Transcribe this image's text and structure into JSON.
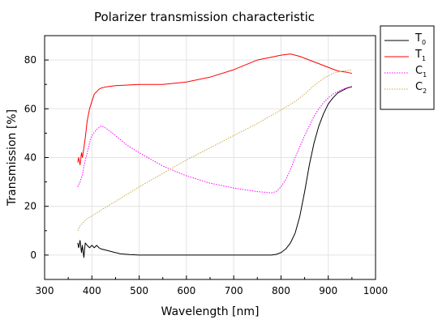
{
  "chart_data": {
    "type": "line",
    "title": "Polarizer transmission characteristic",
    "xlabel": "Wavelength [nm]",
    "ylabel": "Transmission [%]",
    "xlim": [
      300,
      1000
    ],
    "ylim": [
      -10,
      90
    ],
    "xticks": [
      300,
      400,
      500,
      600,
      700,
      800,
      900,
      1000
    ],
    "yticks": [
      0,
      20,
      40,
      60,
      80
    ],
    "grid": true,
    "legend_position": "right",
    "series": [
      {
        "name": "T",
        "subscript": "0",
        "color": "#000000",
        "dash": "solid",
        "x": [
          370,
          372,
          375,
          378,
          380,
          383,
          386,
          390,
          395,
          400,
          405,
          410,
          415,
          420,
          430,
          440,
          450,
          460,
          480,
          500,
          550,
          600,
          650,
          700,
          750,
          780,
          790,
          800,
          810,
          820,
          830,
          840,
          850,
          860,
          870,
          880,
          890,
          900,
          910,
          920,
          930,
          940,
          950
        ],
        "y": [
          5,
          3,
          6,
          1,
          4,
          -1,
          5,
          4,
          3,
          4,
          3,
          4,
          3,
          2.5,
          2,
          1.5,
          1,
          0.5,
          0.2,
          0,
          0,
          0,
          0,
          0,
          0,
          0,
          0.3,
          1,
          2.5,
          5,
          9,
          16,
          26,
          37,
          46,
          53,
          58,
          62,
          64.5,
          66.5,
          67.5,
          68.5,
          69
        ]
      },
      {
        "name": "T",
        "subscript": "1",
        "color": "#ff0000",
        "dash": "solid",
        "x": [
          370,
          372,
          375,
          378,
          380,
          383,
          386,
          390,
          395,
          400,
          405,
          410,
          415,
          420,
          430,
          450,
          500,
          550,
          600,
          650,
          700,
          750,
          800,
          820,
          840,
          860,
          880,
          900,
          920,
          940,
          950
        ],
        "y": [
          38,
          40,
          37,
          42,
          40,
          44,
          48,
          55,
          60,
          63,
          66,
          67,
          68,
          68.5,
          69,
          69.5,
          70,
          70,
          71,
          73,
          76,
          80,
          82,
          82.5,
          81.5,
          80,
          78.5,
          77,
          75.5,
          75,
          74.5
        ]
      },
      {
        "name": "C",
        "subscript": "1",
        "color": "#ff00ff",
        "dash": "dotted",
        "x": [
          370,
          375,
          380,
          385,
          390,
          395,
          400,
          410,
          420,
          430,
          440,
          450,
          475,
          500,
          550,
          600,
          650,
          700,
          750,
          780,
          790,
          800,
          810,
          820,
          830,
          840,
          850,
          860,
          870,
          880,
          890,
          900,
          910,
          920,
          930,
          940,
          950
        ],
        "y": [
          28,
          30,
          33,
          38,
          42,
          46,
          49,
          51.5,
          53,
          52,
          50.5,
          49,
          45,
          42,
          36.5,
          32.5,
          29.5,
          27.5,
          26,
          25.5,
          26,
          28,
          31,
          35,
          40,
          44.5,
          49,
          53,
          57,
          60,
          62.5,
          64.5,
          66,
          67,
          68,
          68.7,
          69.2
        ]
      },
      {
        "name": "C",
        "subscript": "2",
        "color": "#c8aa46",
        "dash": "dotted",
        "x": [
          370,
          375,
          380,
          390,
          400,
          420,
          450,
          500,
          550,
          600,
          650,
          700,
          750,
          800,
          830,
          850,
          870,
          890,
          910,
          930,
          950
        ],
        "y": [
          10,
          12,
          13,
          15,
          16,
          18.5,
          22,
          28,
          33.5,
          39,
          44,
          49,
          54,
          59.5,
          63,
          66,
          69.5,
          72.5,
          74.5,
          75.5,
          76
        ]
      }
    ]
  }
}
